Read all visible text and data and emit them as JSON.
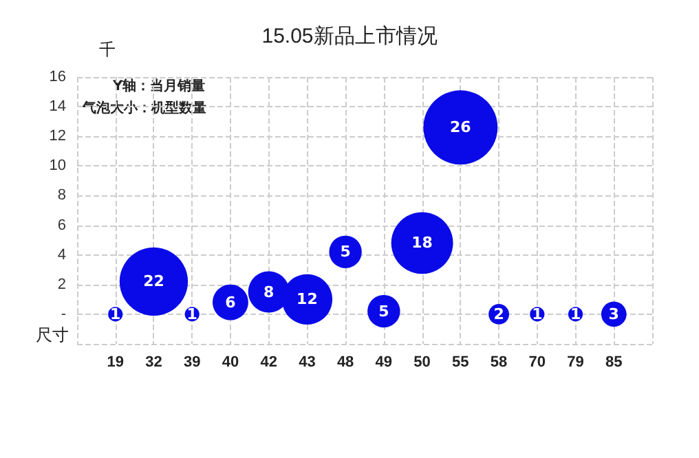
{
  "chart_data": {
    "type": "bubble",
    "title": "15.05新品上市情况",
    "xlabel": "尺寸",
    "ylabel": "千",
    "categories": [
      "19",
      "32",
      "39",
      "40",
      "42",
      "43",
      "48",
      "49",
      "50",
      "55",
      "58",
      "70",
      "79",
      "85"
    ],
    "values": [
      0,
      2.2,
      0,
      0.8,
      1.5,
      1,
      4.2,
      0.2,
      4.8,
      12.6,
      0,
      0,
      0,
      0
    ],
    "sizes": [
      1,
      22,
      1,
      6,
      8,
      12,
      5,
      5,
      18,
      26,
      2,
      1,
      1,
      3
    ],
    "value_labels": [
      "1",
      "22",
      "1",
      "6",
      "8",
      "12",
      "5",
      "5",
      "18",
      "26",
      "2",
      "1",
      "1",
      "3"
    ],
    "color": "#0a0ae8",
    "ylim": [
      -2,
      16
    ],
    "yticks": [
      {
        "value": -2,
        "label": null
      },
      {
        "value": 0,
        "label": "-"
      },
      2,
      4,
      6,
      8,
      10,
      12,
      14,
      16
    ],
    "grid": true,
    "annotations": [
      "Y轴：当月销量",
      "气泡大小：机型数量"
    ]
  }
}
